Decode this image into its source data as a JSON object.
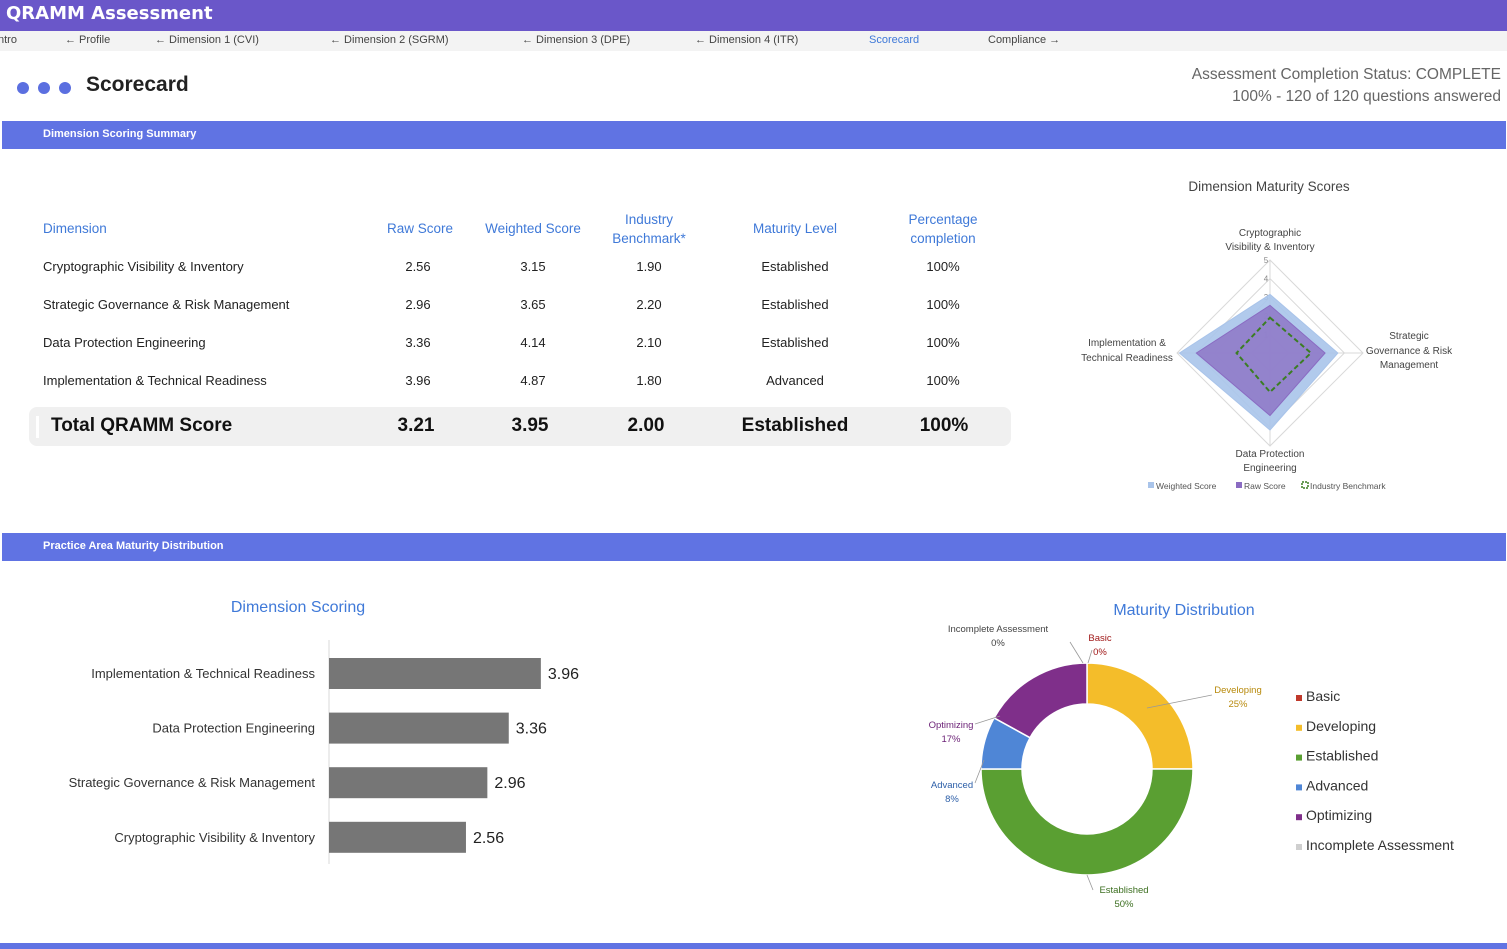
{
  "app": {
    "title": "QRAMM Assessment"
  },
  "nav": {
    "tabs": [
      {
        "label": "ntro"
      },
      {
        "label": "← Profile"
      },
      {
        "label": "← Dimension 1 (CVI)"
      },
      {
        "label": "← Dimension 2 (SGRM)"
      },
      {
        "label": "← Dimension 3 (DPE)"
      },
      {
        "label": "← Dimension 4 (ITR)"
      },
      {
        "label": "Scorecard",
        "active": true
      },
      {
        "label": "Compliance →"
      }
    ]
  },
  "page": {
    "title": "Scorecard"
  },
  "status": {
    "line1": "Assessment Completion Status: COMPLETE",
    "line2": "100% - 120 of 120 questions answered"
  },
  "sections": {
    "summary": "Dimension Scoring Summary",
    "distribution": "Practice Area Maturity Distribution"
  },
  "table": {
    "headers": {
      "dimension": "Dimension",
      "raw": "Raw Score",
      "weighted": "Weighted Score",
      "benchmark_1": "Industry",
      "benchmark_2": "Benchmark*",
      "maturity": "Maturity Level",
      "pct_1": "Percentage",
      "pct_2": "completion"
    },
    "rows": [
      {
        "dimension": "Cryptographic Visibility & Inventory",
        "raw": "2.56",
        "weighted": "3.15",
        "benchmark": "1.90",
        "maturity": "Established",
        "pct": "100%"
      },
      {
        "dimension": "Strategic Governance & Risk Management",
        "raw": "2.96",
        "weighted": "3.65",
        "benchmark": "2.20",
        "maturity": "Established",
        "pct": "100%"
      },
      {
        "dimension": "Data Protection Engineering",
        "raw": "3.36",
        "weighted": "4.14",
        "benchmark": "2.10",
        "maturity": "Established",
        "pct": "100%"
      },
      {
        "dimension": "Implementation & Technical Readiness",
        "raw": "3.96",
        "weighted": "4.87",
        "benchmark": "1.80",
        "maturity": "Advanced",
        "pct": "100%"
      }
    ],
    "total": {
      "label": "Total QRAMM Score",
      "raw": "3.21",
      "weighted": "3.95",
      "benchmark": "2.00",
      "maturity": "Established",
      "pct": "100%"
    }
  },
  "colors": {
    "accent": "#3f79d8",
    "band": "#6073e3",
    "topbar": "#6a57c9",
    "basic": "#c0392b",
    "developing": "#f4bd2a",
    "established": "#5a9f32",
    "advanced": "#4f86d6",
    "optimizing": "#7f2f8a",
    "incomplete": "#cfcfcf"
  },
  "chart_data": [
    {
      "type": "radar",
      "title": "Dimension Maturity Scores",
      "axes": [
        {
          "line1": "Cryptographic",
          "line2": "Visibility & Inventory"
        },
        {
          "line1": "Strategic",
          "line2": "Governance & Risk",
          "line3": "Management"
        },
        {
          "line1": "Data Protection",
          "line2": "Engineering"
        },
        {
          "line1": "Implementation &",
          "line2": "Technical Readiness"
        }
      ],
      "ticks": [
        "1",
        "2",
        "3",
        "4",
        "5"
      ],
      "range": [
        0,
        5
      ],
      "series": [
        {
          "name": "Weighted Score",
          "values": [
            3.15,
            3.65,
            4.14,
            4.87
          ],
          "color": "#a9c4ea"
        },
        {
          "name": "Raw Score",
          "values": [
            2.56,
            2.96,
            3.36,
            3.96
          ],
          "color": "#8a6bc2"
        },
        {
          "name": "Industry Benchmark",
          "values": [
            1.9,
            2.2,
            2.1,
            1.8
          ],
          "color": "#3b7d23"
        }
      ]
    },
    {
      "type": "bar",
      "orientation": "horizontal",
      "title": "Dimension Scoring",
      "categories": [
        "Implementation & Technical Readiness",
        "Data Protection Engineering",
        "Strategic Governance & Risk Management",
        "Cryptographic Visibility & Inventory"
      ],
      "values": [
        3.96,
        3.36,
        2.96,
        2.56
      ],
      "labels": [
        "3.96",
        "3.36",
        "2.96",
        "2.56"
      ],
      "xlim": [
        0,
        5
      ],
      "color": "#767676"
    },
    {
      "type": "pie",
      "variant": "donut",
      "title": "Maturity Distribution",
      "slices": [
        {
          "name": "Basic",
          "value": 0,
          "label": "0%"
        },
        {
          "name": "Developing",
          "value": 25,
          "label": "25%"
        },
        {
          "name": "Established",
          "value": 50,
          "label": "50%"
        },
        {
          "name": "Advanced",
          "value": 8,
          "label": "8%"
        },
        {
          "name": "Optimizing",
          "value": 17,
          "label": "17%"
        },
        {
          "name": "Incomplete Assessment",
          "value": 0,
          "label": "0%"
        }
      ]
    }
  ]
}
